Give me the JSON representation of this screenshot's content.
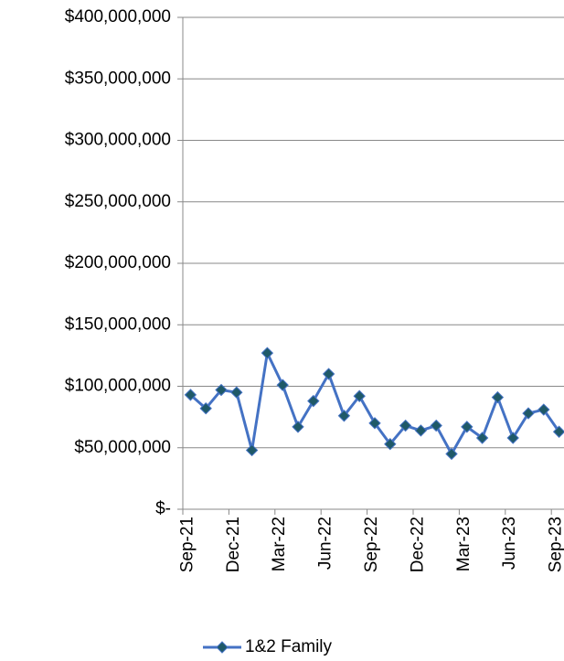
{
  "chart_data": {
    "type": "line",
    "categories": [
      "Sep-21",
      null,
      null,
      "Dec-21",
      null,
      null,
      "Mar-22",
      null,
      null,
      "Jun-22",
      null,
      null,
      "Sep-22",
      null,
      null,
      "Dec-22",
      null,
      null,
      "Mar-23",
      null,
      null,
      "Jun-23",
      null,
      null,
      "Sep-23"
    ],
    "series": [
      {
        "name": "1&2 Family",
        "color": "#4472c4",
        "marker_color": "#1f5968",
        "values": [
          93000000,
          82000000,
          97000000,
          95000000,
          48000000,
          127000000,
          101000000,
          67000000,
          88000000,
          110000000,
          76000000,
          92000000,
          70000000,
          53000000,
          68000000,
          64000000,
          68000000,
          45000000,
          67000000,
          58000000,
          91000000,
          58000000,
          78000000,
          81000000,
          63000000
        ]
      }
    ],
    "ylim": [
      0,
      400000000
    ],
    "yticks": [
      {
        "value": 0,
        "label": "$-"
      },
      {
        "value": 50000000,
        "label": "$50,000,000"
      },
      {
        "value": 100000000,
        "label": "$100,000,000"
      },
      {
        "value": 150000000,
        "label": "$150,000,000"
      },
      {
        "value": 200000000,
        "label": "$200,000,000"
      },
      {
        "value": 250000000,
        "label": "$250,000,000"
      },
      {
        "value": 300000000,
        "label": "$300,000,000"
      },
      {
        "value": 350000000,
        "label": "$350,000,000"
      },
      {
        "value": 400000000,
        "label": "$400,000,000"
      }
    ],
    "grid": true,
    "legend": "bottom"
  }
}
